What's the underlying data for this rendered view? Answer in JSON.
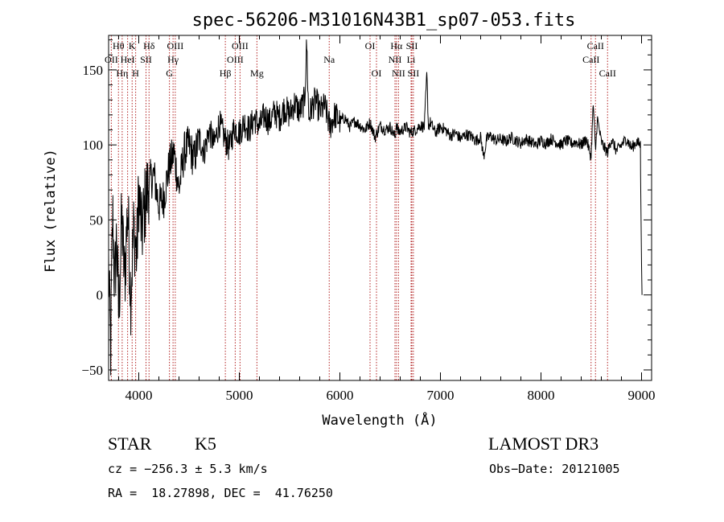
{
  "chart_data": {
    "type": "line",
    "title": "spec-56206-M31016N43B1_sp07-053.fits",
    "xlabel": "Wavelength (Å)",
    "ylabel": "Flux (relative)",
    "xlim": [
      3700,
      9100
    ],
    "ylim": [
      -57,
      173
    ],
    "x_ticks": [
      4000,
      5000,
      6000,
      7000,
      8000,
      9000
    ],
    "y_ticks": [
      -50,
      0,
      50,
      100,
      150
    ],
    "x_tick_labels": [
      "4000",
      "5000",
      "6000",
      "7000",
      "8000",
      "9000"
    ],
    "y_tick_labels": [
      "−50",
      "0",
      "50",
      "100",
      "150"
    ],
    "series": [
      {
        "name": "flux",
        "x": [
          3700,
          3720,
          3740,
          3760,
          3780,
          3800,
          3830,
          3860,
          3890,
          3920,
          3950,
          3980,
          4000,
          4030,
          4060,
          4100,
          4150,
          4200,
          4250,
          4300,
          4350,
          4400,
          4450,
          4500,
          4550,
          4600,
          4650,
          4700,
          4750,
          4800,
          4850,
          4900,
          4950,
          5000,
          5050,
          5100,
          5150,
          5200,
          5250,
          5300,
          5350,
          5400,
          5450,
          5500,
          5550,
          5600,
          5650,
          5670,
          5690,
          5720,
          5760,
          5800,
          5850,
          5900,
          5950,
          6000,
          6050,
          6100,
          6150,
          6200,
          6250,
          6300,
          6350,
          6400,
          6450,
          6500,
          6550,
          6563,
          6580,
          6620,
          6660,
          6700,
          6750,
          6800,
          6840,
          6865,
          6880,
          6900,
          6950,
          7000,
          7050,
          7100,
          7150,
          7200,
          7250,
          7300,
          7350,
          7400,
          7430,
          7460,
          7500,
          7550,
          7600,
          7650,
          7700,
          7750,
          7800,
          7850,
          7900,
          7950,
          8000,
          8050,
          8100,
          8150,
          8200,
          8250,
          8300,
          8350,
          8400,
          8450,
          8498,
          8520,
          8542,
          8560,
          8600,
          8630,
          8662,
          8700,
          8750,
          8800,
          8850,
          8900,
          8950,
          8990,
          9000,
          9005
        ],
        "values": [
          20,
          -40,
          55,
          5,
          40,
          -15,
          50,
          10,
          60,
          0,
          45,
          25,
          70,
          40,
          60,
          75,
          80,
          60,
          65,
          85,
          95,
          70,
          95,
          100,
          90,
          105,
          95,
          110,
          100,
          115,
          105,
          98,
          112,
          108,
          115,
          110,
          118,
          112,
          120,
          115,
          122,
          118,
          125,
          120,
          128,
          122,
          130,
          168,
          118,
          125,
          130,
          122,
          126,
          112,
          120,
          116,
          118,
          112,
          116,
          113,
          110,
          115,
          105,
          113,
          110,
          112,
          105,
          115,
          108,
          110,
          112,
          108,
          110,
          113,
          112,
          148,
          112,
          115,
          108,
          112,
          110,
          106,
          108,
          104,
          107,
          106,
          103,
          105,
          92,
          104,
          106,
          103,
          104,
          102,
          105,
          103,
          101,
          104,
          102,
          100,
          103,
          101,
          104,
          102,
          100,
          103,
          101,
          102,
          100,
          104,
          92,
          128,
          95,
          118,
          102,
          98,
          95,
          104,
          96,
          100,
          104,
          98,
          102,
          100,
          80,
          0
        ]
      }
    ],
    "line_markers": [
      {
        "name": "OII",
        "x": 3727,
        "row": 2
      },
      {
        "name": "Hθ",
        "x": 3798,
        "row": 1
      },
      {
        "name": "Hη",
        "x": 3835,
        "row": 3
      },
      {
        "name": "HeI",
        "x": 3889,
        "row": 2
      },
      {
        "name": "K",
        "x": 3934,
        "row": 1
      },
      {
        "name": "H",
        "x": 3969,
        "row": 3
      },
      {
        "name": "SII",
        "x": 4072,
        "row": 2
      },
      {
        "name": "Hδ",
        "x": 4102,
        "row": 1
      },
      {
        "name": "G",
        "x": 4305,
        "row": 3
      },
      {
        "name": "Hγ",
        "x": 4341,
        "row": 2
      },
      {
        "name": "OIII",
        "x": 4363,
        "row": 1
      },
      {
        "name": "Hβ",
        "x": 4861,
        "row": 3
      },
      {
        "name": "OIII",
        "x": 4959,
        "row": 2
      },
      {
        "name": "OIII",
        "x": 5007,
        "row": 1
      },
      {
        "name": "Mg",
        "x": 5175,
        "row": 3
      },
      {
        "name": "Na",
        "x": 5894,
        "row": 2
      },
      {
        "name": "OI",
        "x": 6300,
        "row": 1
      },
      {
        "name": "OI",
        "x": 6364,
        "row": 3
      },
      {
        "name": "NII",
        "x": 6548,
        "row": 2
      },
      {
        "name": "Hα",
        "x": 6563,
        "row": 1
      },
      {
        "name": "NII",
        "x": 6583,
        "row": 3
      },
      {
        "name": "Li",
        "x": 6708,
        "row": 2
      },
      {
        "name": "SII",
        "x": 6716,
        "row": 1
      },
      {
        "name": "SII",
        "x": 6731,
        "row": 3
      },
      {
        "name": "CaII",
        "x": 8498,
        "row": 2
      },
      {
        "name": "CaII",
        "x": 8542,
        "row": 1
      },
      {
        "name": "CaII",
        "x": 8662,
        "row": 3
      }
    ]
  },
  "info": {
    "object_class": "STAR",
    "subclass": "K5",
    "survey": "LAMOST DR3",
    "redshift_line": "cz = −256.3 ± 5.3 km/s",
    "obs_date_line": "Obs−Date: 20121005",
    "coords_line": "RA =  18.27898, DEC =  41.76250"
  },
  "colors": {
    "spectrum": "#000000",
    "marker_line": "#b22222",
    "axes": "#000000"
  }
}
